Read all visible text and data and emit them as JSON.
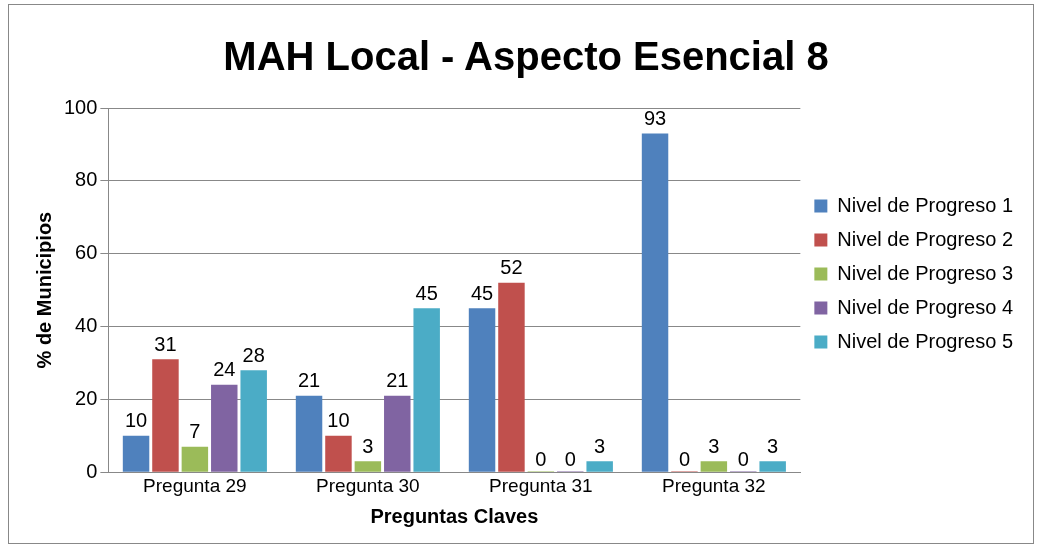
{
  "chart_data": {
    "type": "bar",
    "title": "MAH Local - Aspecto Esencial 8",
    "xlabel": "Preguntas Claves",
    "ylabel": "% de Municipios",
    "categories": [
      "Pregunta 29",
      "Pregunta 30",
      "Pregunta 31",
      "Pregunta 32"
    ],
    "series": [
      {
        "name": "Nivel de Progreso 1",
        "color": "#4f81bd",
        "values": [
          10,
          21,
          45,
          93
        ]
      },
      {
        "name": "Nivel de Progreso 2",
        "color": "#c0504d",
        "values": [
          31,
          10,
          52,
          0
        ]
      },
      {
        "name": "Nivel de Progreso 3",
        "color": "#9bbb59",
        "values": [
          7,
          3,
          0,
          3
        ]
      },
      {
        "name": "Nivel de Progreso 4",
        "color": "#8064a2",
        "values": [
          24,
          21,
          0,
          0
        ]
      },
      {
        "name": "Nivel de Progreso 5",
        "color": "#4bacc6",
        "values": [
          28,
          45,
          3,
          3
        ]
      }
    ],
    "ylim": [
      0,
      100
    ],
    "yticks": [
      0,
      20,
      40,
      60,
      80,
      100
    ],
    "grid": "y",
    "legend": "right",
    "data_labels": true
  }
}
